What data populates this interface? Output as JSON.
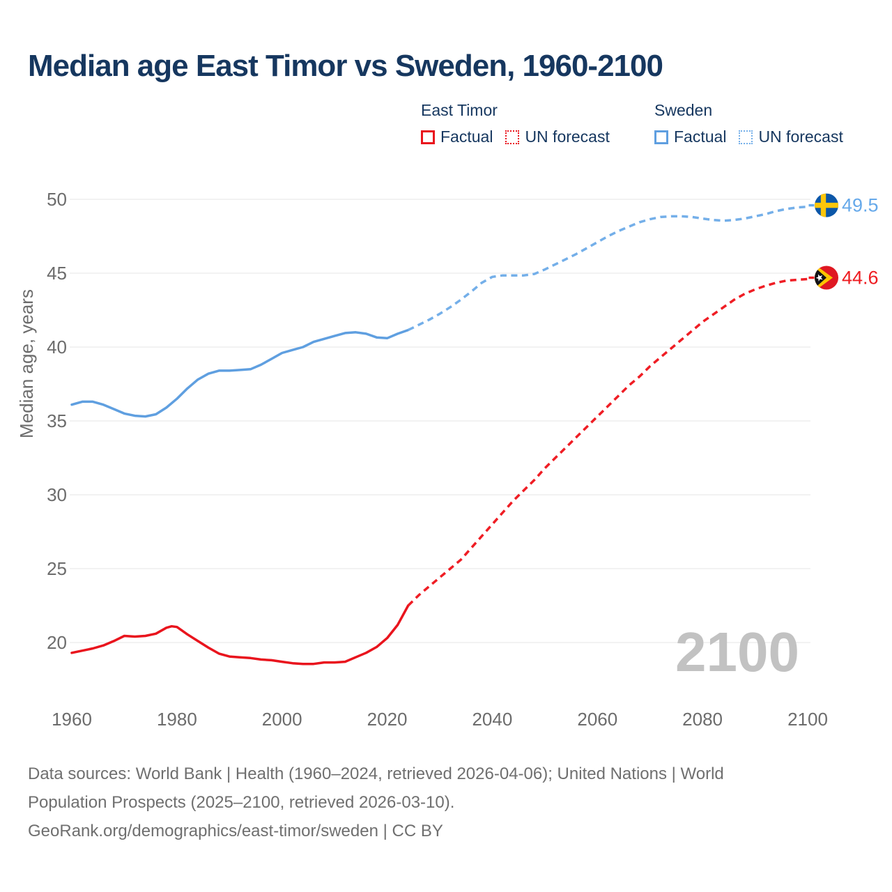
{
  "title": "Median age East Timor vs Sweden, 1960-2100",
  "legend": {
    "groups": [
      {
        "label": "East Timor",
        "items": [
          {
            "label": "Factual",
            "style": "solid"
          },
          {
            "label": "UN forecast",
            "style": "dotted"
          }
        ]
      },
      {
        "label": "Sweden",
        "items": [
          {
            "label": "Factual",
            "style": "solid"
          },
          {
            "label": "UN forecast",
            "style": "dotted"
          }
        ]
      }
    ]
  },
  "colors": {
    "east_timor": "#e9141d",
    "east_timor_forecast": "#ef1d24",
    "sweden": "#5f9fe0",
    "sweden_forecast": "#74afe9",
    "title_navy": "#16375f",
    "tick_gray": "#6c6c6c",
    "gridline": "#eaeaea",
    "watermark_gray": "#c2c2c2",
    "sweden_flag_blue": "#0c57a8",
    "sweden_flag_yellow": "#fec60a",
    "timor_flag_red": "#df1822",
    "timor_flag_yellow": "#fdc500",
    "timor_flag_black": "#121217"
  },
  "watermark": "2100",
  "footer": {
    "lines": [
      "Data sources: World Bank | Health (1960–2024, retrieved 2026-04-06); United Nations | World",
      "Population Prospects (2025–2100, retrieved 2026-03-10).",
      "GeoRank.org/demographics/east-timor/sweden | CC BY"
    ]
  },
  "chart_data": {
    "type": "line",
    "title": "Median age East Timor vs Sweden, 1960-2100",
    "xlabel": "",
    "ylabel": "Median age, years",
    "ylim": [
      18,
      51
    ],
    "xlim": [
      1960,
      2100
    ],
    "yticks": [
      50,
      45,
      40,
      35,
      30,
      25,
      20
    ],
    "xticks": [
      1960,
      1980,
      2000,
      2020,
      2040,
      2060,
      2080,
      2100
    ],
    "grid": "horizontal",
    "legend_position": "top",
    "series": [
      {
        "name": "Sweden Factual",
        "country": "Sweden",
        "kind": "factual",
        "style": "solid",
        "color": "#5f9fe0",
        "points": [
          [
            1960,
            36.1
          ],
          [
            1962,
            36.3
          ],
          [
            1964,
            36.3
          ],
          [
            1966,
            36.1
          ],
          [
            1968,
            35.8
          ],
          [
            1970,
            35.5
          ],
          [
            1972,
            35.35
          ],
          [
            1974,
            35.3
          ],
          [
            1976,
            35.45
          ],
          [
            1978,
            35.9
          ],
          [
            1980,
            36.5
          ],
          [
            1982,
            37.2
          ],
          [
            1984,
            37.8
          ],
          [
            1986,
            38.2
          ],
          [
            1988,
            38.4
          ],
          [
            1990,
            38.4
          ],
          [
            1992,
            38.45
          ],
          [
            1994,
            38.5
          ],
          [
            1996,
            38.8
          ],
          [
            1998,
            39.2
          ],
          [
            2000,
            39.6
          ],
          [
            2002,
            39.8
          ],
          [
            2004,
            40.0
          ],
          [
            2006,
            40.35
          ],
          [
            2008,
            40.55
          ],
          [
            2010,
            40.75
          ],
          [
            2012,
            40.95
          ],
          [
            2014,
            41.0
          ],
          [
            2016,
            40.9
          ],
          [
            2018,
            40.65
          ],
          [
            2020,
            40.6
          ],
          [
            2022,
            40.9
          ],
          [
            2024,
            41.15
          ]
        ]
      },
      {
        "name": "Sweden UN forecast",
        "country": "Sweden",
        "kind": "forecast",
        "style": "dashed",
        "color": "#74afe9",
        "points": [
          [
            2024,
            41.15
          ],
          [
            2026,
            41.5
          ],
          [
            2028,
            41.85
          ],
          [
            2030,
            42.25
          ],
          [
            2032,
            42.7
          ],
          [
            2034,
            43.2
          ],
          [
            2036,
            43.75
          ],
          [
            2038,
            44.35
          ],
          [
            2040,
            44.75
          ],
          [
            2042,
            44.85
          ],
          [
            2044,
            44.85
          ],
          [
            2046,
            44.85
          ],
          [
            2048,
            44.95
          ],
          [
            2050,
            45.25
          ],
          [
            2052,
            45.6
          ],
          [
            2054,
            45.95
          ],
          [
            2056,
            46.3
          ],
          [
            2058,
            46.7
          ],
          [
            2060,
            47.1
          ],
          [
            2062,
            47.5
          ],
          [
            2064,
            47.85
          ],
          [
            2066,
            48.15
          ],
          [
            2068,
            48.45
          ],
          [
            2070,
            48.65
          ],
          [
            2072,
            48.8
          ],
          [
            2074,
            48.85
          ],
          [
            2076,
            48.85
          ],
          [
            2078,
            48.8
          ],
          [
            2080,
            48.7
          ],
          [
            2082,
            48.6
          ],
          [
            2084,
            48.55
          ],
          [
            2086,
            48.6
          ],
          [
            2088,
            48.7
          ],
          [
            2090,
            48.85
          ],
          [
            2092,
            49.0
          ],
          [
            2094,
            49.2
          ],
          [
            2096,
            49.35
          ],
          [
            2098,
            49.45
          ],
          [
            2100,
            49.5
          ]
        ]
      },
      {
        "name": "East Timor Factual",
        "country": "East Timor",
        "kind": "factual",
        "style": "solid",
        "color": "#e9141d",
        "points": [
          [
            1960,
            19.3
          ],
          [
            1962,
            19.45
          ],
          [
            1964,
            19.6
          ],
          [
            1966,
            19.8
          ],
          [
            1968,
            20.1
          ],
          [
            1970,
            20.45
          ],
          [
            1972,
            20.4
          ],
          [
            1974,
            20.45
          ],
          [
            1976,
            20.6
          ],
          [
            1978,
            21.0
          ],
          [
            1979,
            21.1
          ],
          [
            1980,
            21.05
          ],
          [
            1982,
            20.55
          ],
          [
            1984,
            20.1
          ],
          [
            1986,
            19.65
          ],
          [
            1988,
            19.25
          ],
          [
            1990,
            19.05
          ],
          [
            1992,
            19.0
          ],
          [
            1994,
            18.95
          ],
          [
            1996,
            18.85
          ],
          [
            1998,
            18.8
          ],
          [
            2000,
            18.7
          ],
          [
            2002,
            18.6
          ],
          [
            2004,
            18.55
          ],
          [
            2006,
            18.55
          ],
          [
            2008,
            18.65
          ],
          [
            2010,
            18.65
          ],
          [
            2012,
            18.7
          ],
          [
            2014,
            19.0
          ],
          [
            2016,
            19.3
          ],
          [
            2018,
            19.7
          ],
          [
            2020,
            20.3
          ],
          [
            2022,
            21.2
          ],
          [
            2024,
            22.5
          ]
        ]
      },
      {
        "name": "East Timor UN forecast",
        "country": "East Timor",
        "kind": "forecast",
        "style": "dashed",
        "color": "#ef1d24",
        "points": [
          [
            2024,
            22.5
          ],
          [
            2026,
            23.2
          ],
          [
            2028,
            23.8
          ],
          [
            2030,
            24.4
          ],
          [
            2032,
            25.0
          ],
          [
            2034,
            25.6
          ],
          [
            2036,
            26.4
          ],
          [
            2038,
            27.2
          ],
          [
            2040,
            28.0
          ],
          [
            2042,
            28.8
          ],
          [
            2044,
            29.6
          ],
          [
            2046,
            30.3
          ],
          [
            2048,
            31.0
          ],
          [
            2050,
            31.8
          ],
          [
            2052,
            32.5
          ],
          [
            2054,
            33.2
          ],
          [
            2056,
            33.9
          ],
          [
            2058,
            34.6
          ],
          [
            2060,
            35.3
          ],
          [
            2062,
            36.0
          ],
          [
            2064,
            36.7
          ],
          [
            2066,
            37.4
          ],
          [
            2068,
            38.0
          ],
          [
            2070,
            38.7
          ],
          [
            2072,
            39.3
          ],
          [
            2074,
            39.9
          ],
          [
            2076,
            40.5
          ],
          [
            2078,
            41.1
          ],
          [
            2080,
            41.7
          ],
          [
            2082,
            42.2
          ],
          [
            2084,
            42.7
          ],
          [
            2086,
            43.2
          ],
          [
            2088,
            43.6
          ],
          [
            2090,
            43.9
          ],
          [
            2092,
            44.15
          ],
          [
            2094,
            44.35
          ],
          [
            2096,
            44.5
          ],
          [
            2098,
            44.55
          ],
          [
            2100,
            44.6
          ]
        ]
      }
    ],
    "end_labels": [
      {
        "series": "Sweden",
        "value": "49.5",
        "y": 49.5,
        "color": "#66a9ea",
        "flag": "sweden"
      },
      {
        "series": "East Timor",
        "value": "44.6",
        "y": 44.6,
        "color": "#ee1c21",
        "flag": "east-timor"
      }
    ]
  }
}
